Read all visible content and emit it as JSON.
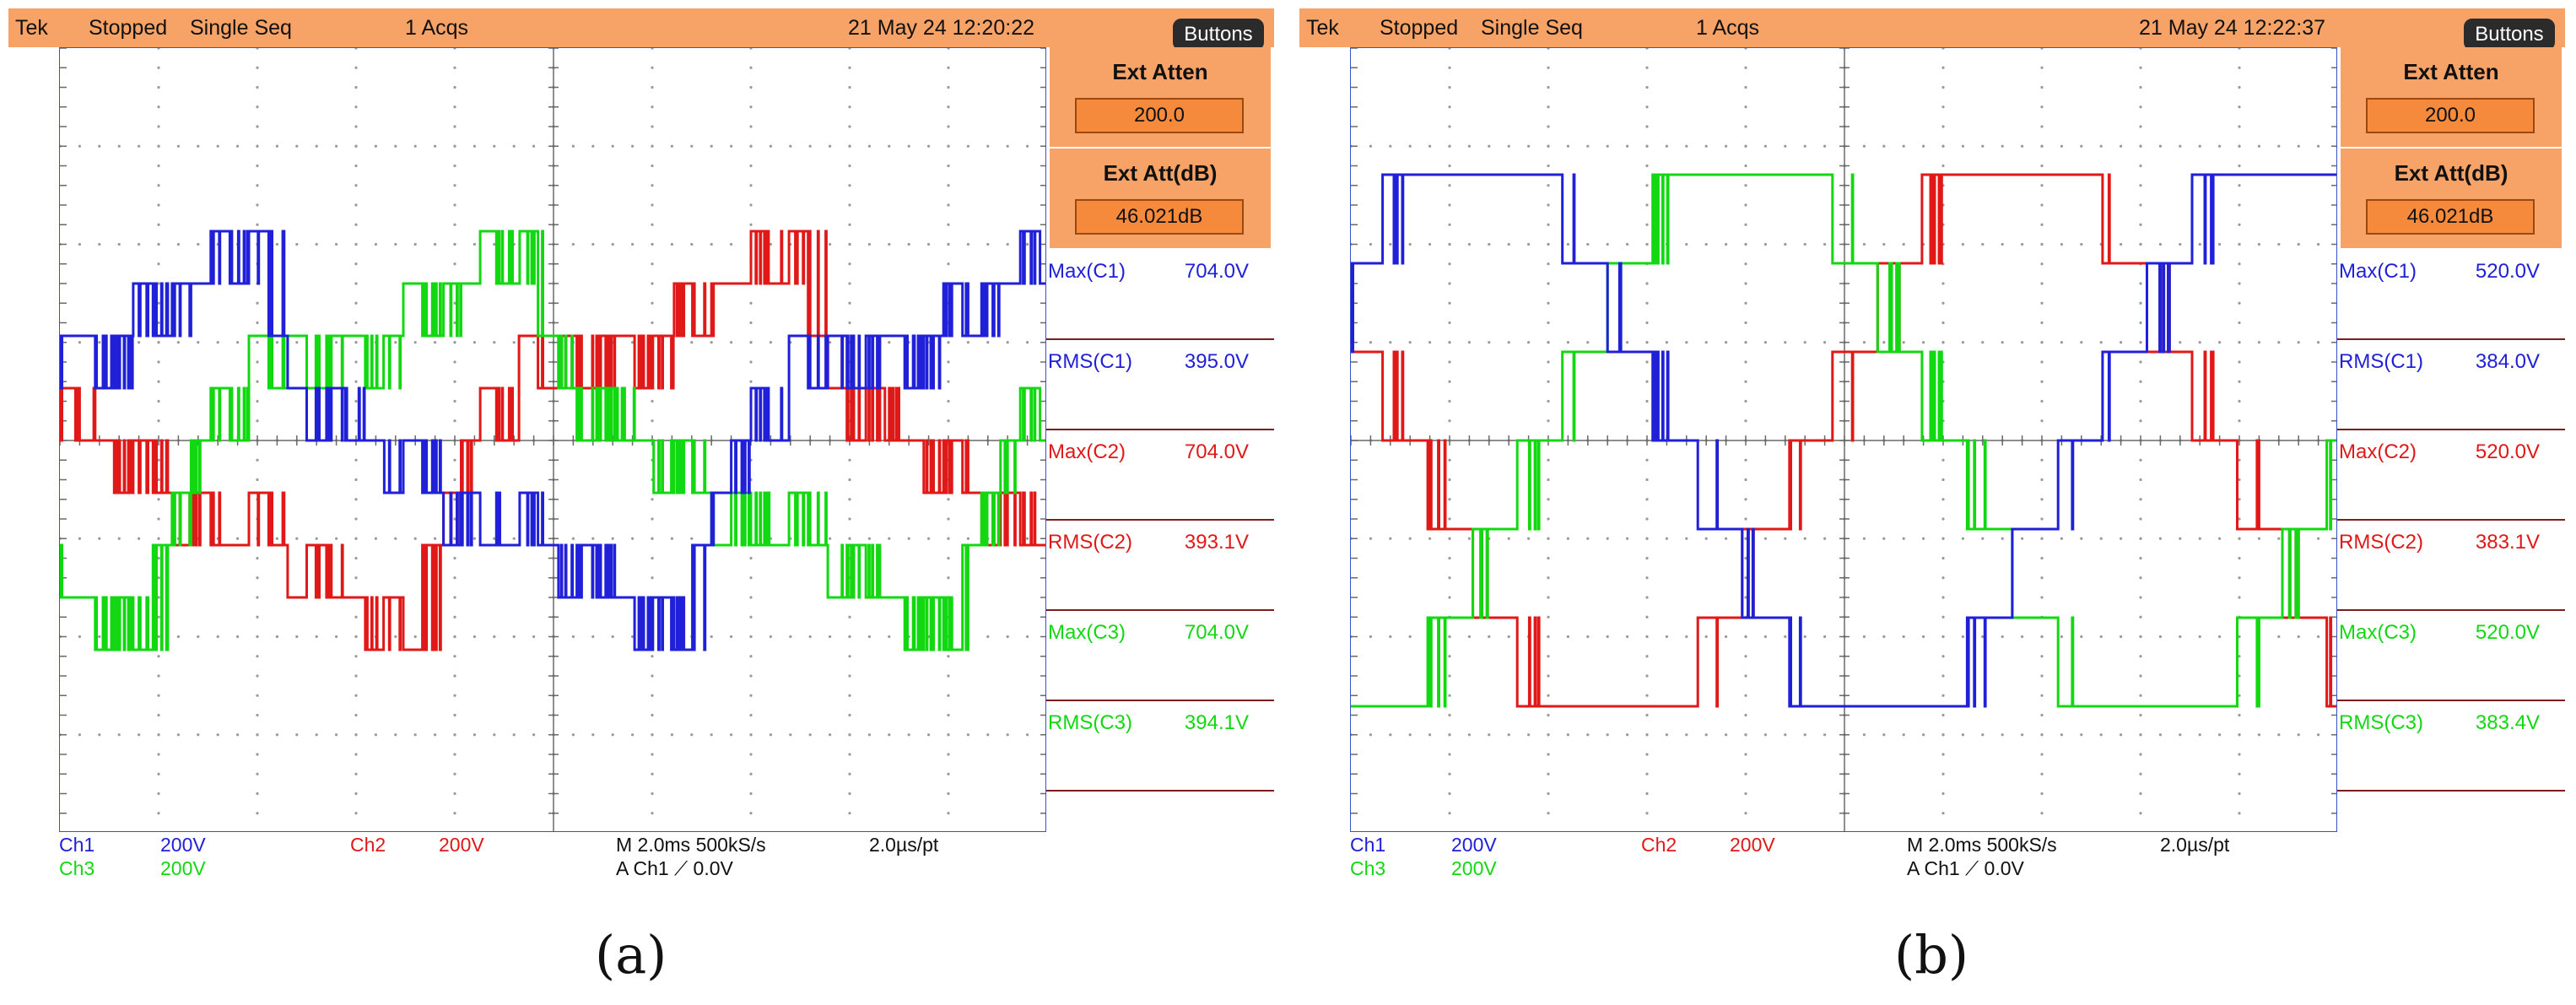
{
  "colors": {
    "ch1": "#2020d8",
    "ch2": "#e01818",
    "ch3": "#12d812",
    "bar": "#f7a266",
    "grid": "#9a9a9a",
    "frame": "#3a52c4"
  },
  "scopes": [
    {
      "id": "a",
      "topbar": {
        "brand": "Tek",
        "state": "Stopped",
        "mode": "Single Seq",
        "acqs": "1 Acqs",
        "datetime": "21 May 24 12:20:22"
      },
      "buttons_label": "Buttons",
      "ext_atten": {
        "label": "Ext Atten",
        "value": "200.0"
      },
      "ext_att_db": {
        "label": "Ext Att(dB)",
        "value": "46.021dB"
      },
      "measurements": [
        {
          "label": "Max(C1)",
          "value": "704.0V",
          "color": "#2020d8"
        },
        {
          "label": "RMS(C1)",
          "value": "395.0V",
          "color": "#2020d8"
        },
        {
          "label": "Max(C2)",
          "value": "704.0V",
          "color": "#e01818"
        },
        {
          "label": "RMS(C2)",
          "value": "393.1V",
          "color": "#e01818"
        },
        {
          "label": "Max(C3)",
          "value": "704.0V",
          "color": "#12d812"
        },
        {
          "label": "RMS(C3)",
          "value": "394.1V",
          "color": "#12d812"
        }
      ],
      "status": {
        "ch1": "Ch1",
        "ch1_scale": "200V",
        "ch3": "Ch3",
        "ch3_scale": "200V",
        "ch2": "Ch2",
        "ch2_scale": "200V",
        "timebase": "M 2.0ms 500kS/s",
        "resolution": "2.0µs/pt",
        "trigger": "A  Ch1  ⟋  0.0V"
      },
      "caption": "(a)"
    },
    {
      "id": "b",
      "topbar": {
        "brand": "Tek",
        "state": "Stopped",
        "mode": "Single Seq",
        "acqs": "1 Acqs",
        "datetime": "21 May 24 12:22:37"
      },
      "buttons_label": "Buttons",
      "ext_atten": {
        "label": "Ext Atten",
        "value": "200.0"
      },
      "ext_att_db": {
        "label": "Ext Att(dB)",
        "value": "46.021dB"
      },
      "measurements": [
        {
          "label": "Max(C1)",
          "value": "520.0V",
          "color": "#2020d8"
        },
        {
          "label": "RMS(C1)",
          "value": "384.0V",
          "color": "#2020d8"
        },
        {
          "label": "Max(C2)",
          "value": "520.0V",
          "color": "#e01818"
        },
        {
          "label": "RMS(C2)",
          "value": "383.1V",
          "color": "#e01818"
        },
        {
          "label": "Max(C3)",
          "value": "520.0V",
          "color": "#12d812"
        },
        {
          "label": "RMS(C3)",
          "value": "383.4V",
          "color": "#12d812"
        }
      ],
      "status": {
        "ch1": "Ch1",
        "ch1_scale": "200V",
        "ch3": "Ch3",
        "ch3_scale": "200V",
        "ch2": "Ch2",
        "ch2_scale": "200V",
        "timebase": "M 2.0ms 500kS/s",
        "resolution": "2.0µs/pt",
        "trigger": "A  Ch1  ⟋  0.0V"
      },
      "caption": "(b)"
    }
  ]
}
